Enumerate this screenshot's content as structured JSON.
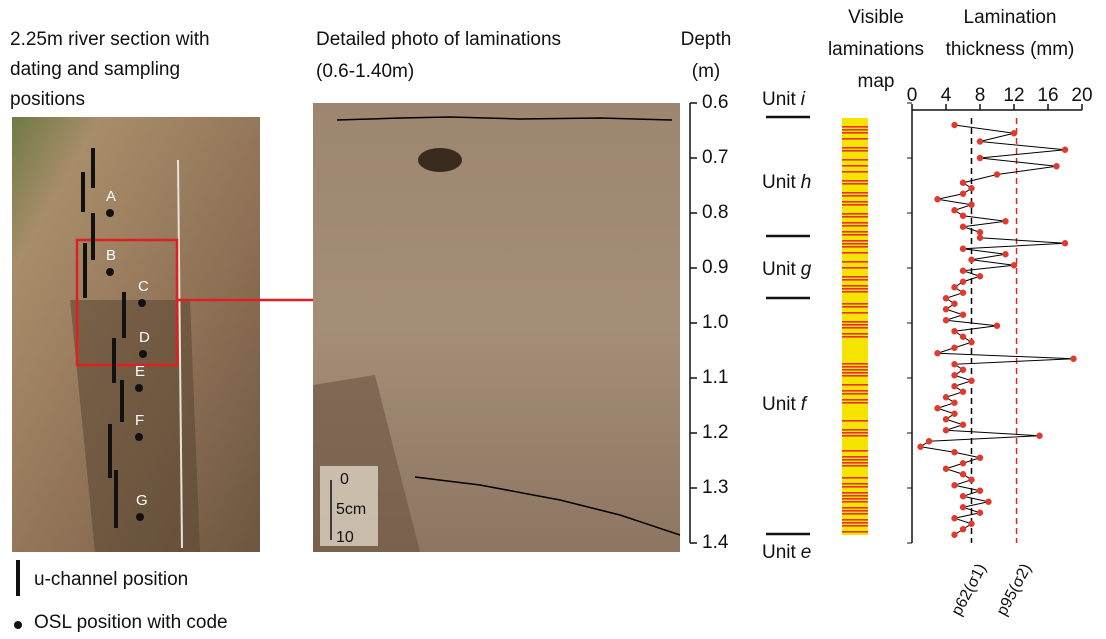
{
  "panels": {
    "section": {
      "title": [
        "2.25m river section with",
        "dating and sampling",
        "positions"
      ],
      "osl_codes": [
        "A",
        "B",
        "C",
        "D",
        "E",
        "F",
        "G"
      ],
      "legend": {
        "u_channel": "u-channel position",
        "osl": "OSL position with code"
      }
    },
    "photo": {
      "title": [
        "Detailed photo of laminations",
        "(0.6-1.40m)"
      ],
      "scale": [
        "0",
        "5cm",
        "10"
      ]
    },
    "map": {
      "title": [
        "Visible",
        "laminations",
        "map"
      ]
    },
    "units": [
      {
        "label": "Unit",
        "letter": "i"
      },
      {
        "label": "Unit",
        "letter": "h"
      },
      {
        "label": "Unit",
        "letter": "g"
      },
      {
        "label": "Unit",
        "letter": "f"
      },
      {
        "label": "Unit",
        "letter": "e"
      }
    ]
  },
  "chart_data": {
    "type": "line",
    "xlabel": [
      "Lamination",
      "thickness (mm)"
    ],
    "ylabel": [
      "Depth",
      "(m)"
    ],
    "xlim": [
      0,
      20
    ],
    "xticks": [
      0,
      4,
      8,
      12,
      16,
      20
    ],
    "ylim": [
      0.6,
      1.4
    ],
    "yticks": [
      0.6,
      0.7,
      0.8,
      0.9,
      {
        "value": 1,
        "label": "1.0"
      },
      1.1,
      1.2,
      1.3,
      1.4
    ],
    "color": "#000000",
    "marker_color": "#e03a2f",
    "depth": [
      0.64,
      0.655,
      0.67,
      0.685,
      0.7,
      0.715,
      0.73,
      0.745,
      0.755,
      0.765,
      0.775,
      0.785,
      0.795,
      0.805,
      0.815,
      0.825,
      0.835,
      0.845,
      0.855,
      0.865,
      0.875,
      0.885,
      0.895,
      0.905,
      0.915,
      0.925,
      0.935,
      0.945,
      0.955,
      0.965,
      0.975,
      0.985,
      0.995,
      1.005,
      1.015,
      1.025,
      1.035,
      1.045,
      1.055,
      1.065,
      1.075,
      1.085,
      1.095,
      1.105,
      1.115,
      1.125,
      1.135,
      1.145,
      1.155,
      1.165,
      1.175,
      1.185,
      1.195,
      1.205,
      1.215,
      1.225,
      1.235,
      1.245,
      1.255,
      1.265,
      1.275,
      1.285,
      1.295,
      1.305,
      1.315,
      1.325,
      1.335,
      1.345,
      1.355,
      1.365,
      1.375,
      1.385
    ],
    "values": [
      5,
      12,
      8,
      18,
      8,
      17,
      10,
      6,
      7,
      6,
      3,
      7,
      5,
      6,
      11,
      6,
      8,
      8,
      18,
      6,
      11,
      7,
      12,
      6,
      8,
      6,
      5,
      6,
      4,
      5,
      4,
      6,
      4,
      10,
      5,
      6,
      7,
      5,
      3,
      19,
      5,
      6,
      5,
      7,
      5,
      6,
      4,
      5,
      3,
      5,
      4,
      6,
      4,
      15,
      2,
      1,
      5,
      8,
      6,
      4,
      6,
      7,
      5,
      8,
      6,
      9,
      6,
      8,
      5,
      7,
      6,
      5
    ],
    "reference_lines": [
      {
        "label": "p62(σ1)",
        "value": 7,
        "color": "#000000"
      },
      {
        "label": "p95(σ2)",
        "value": 12.3,
        "color": "#d62728"
      }
    ]
  }
}
